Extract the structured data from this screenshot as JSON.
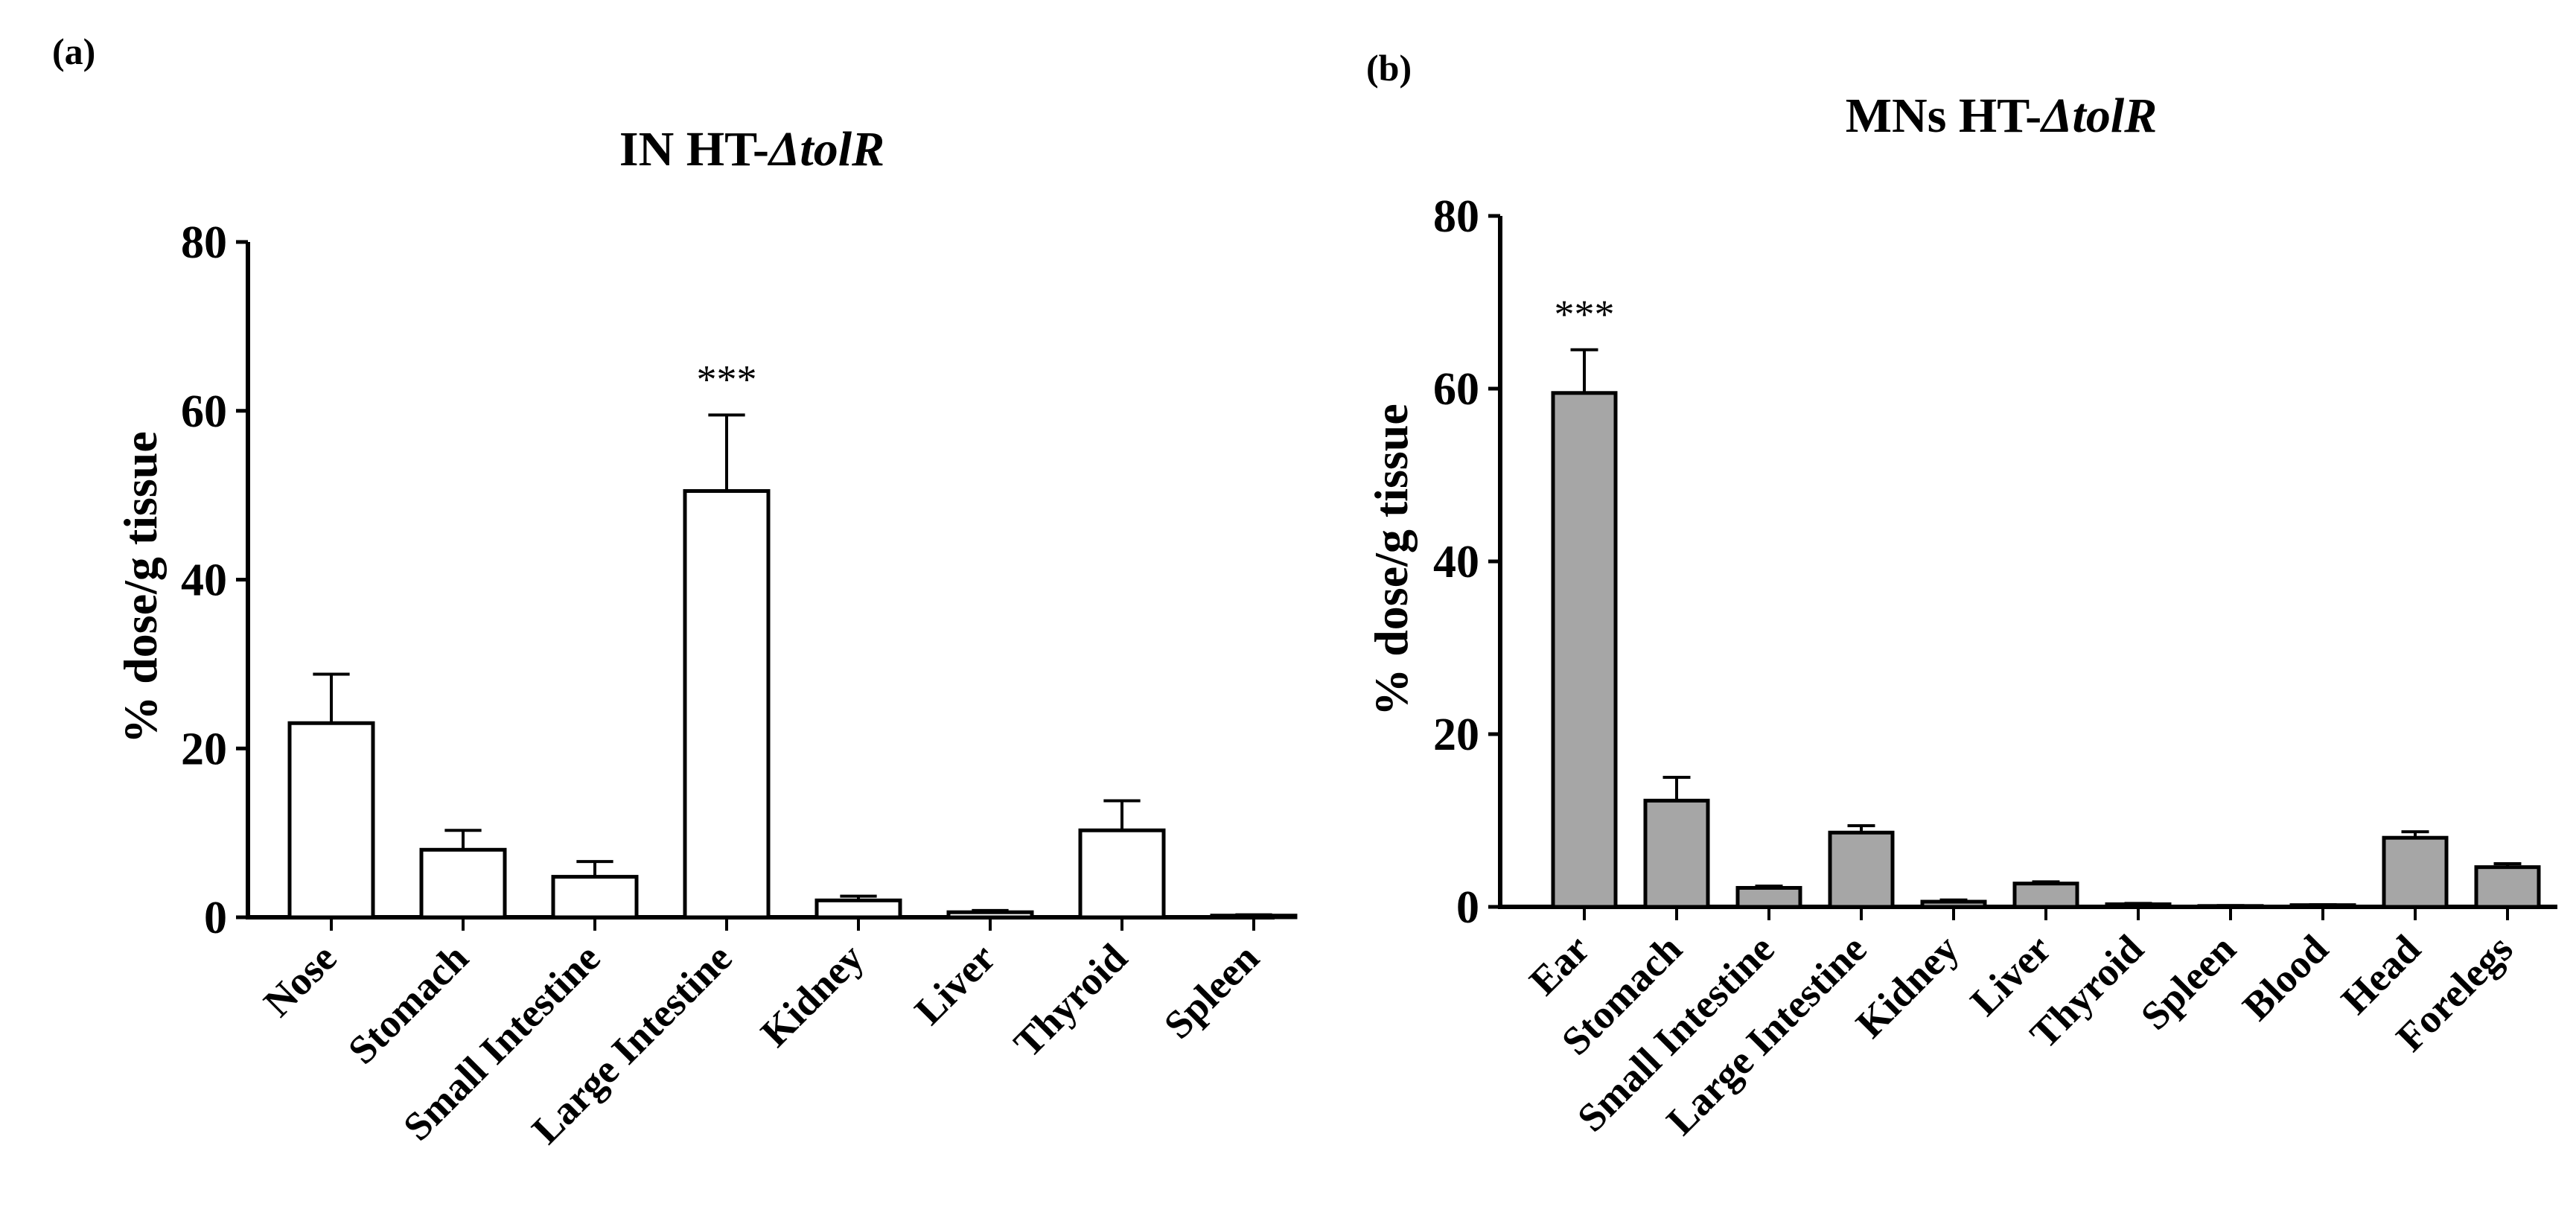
{
  "figure": {
    "bar_colors": [
      "#ffffff",
      "#a6a6a6"
    ],
    "axis_color": "#000000"
  },
  "chart_data": [
    {
      "panel": "(a)",
      "type": "bar",
      "title": "IN HT-",
      "title_italic": "ΔtolR",
      "xlabel": "",
      "ylabel": "% dose/g tissue",
      "ylim": [
        0,
        80
      ],
      "yticks": [
        0,
        20,
        40,
        60,
        80
      ],
      "categories": [
        "Nose",
        "Stomach",
        "Small Intestine",
        "Large Intestine",
        "Kidney",
        "Liver",
        "Thyroid",
        "Spleen"
      ],
      "values": [
        23,
        8,
        4.8,
        50.5,
        2.0,
        0.6,
        10.3,
        0.2
      ],
      "errors": [
        5.8,
        2.3,
        1.8,
        9.0,
        0.5,
        0.2,
        3.5,
        0.1
      ],
      "annotations": [
        {
          "category": "Large Intestine",
          "text": "***"
        }
      ]
    },
    {
      "panel": "(b)",
      "type": "bar",
      "title": "MNs HT-",
      "title_italic": "ΔtolR",
      "xlabel": "",
      "ylabel": "% dose/g tissue",
      "ylim": [
        0,
        80
      ],
      "yticks": [
        0,
        20,
        40,
        60,
        80
      ],
      "categories": [
        "Ear",
        "Stomach",
        "Small Intestine",
        "Large Intestine",
        "Kidney",
        "Liver",
        "Thyroid",
        "Spleen",
        "Blood",
        "Head",
        "Forelegs"
      ],
      "values": [
        59.5,
        12.3,
        2.2,
        8.6,
        0.6,
        2.7,
        0.3,
        0.1,
        0.2,
        8.0,
        4.6
      ],
      "errors": [
        5.0,
        2.7,
        0.2,
        0.8,
        0.2,
        0.2,
        0.1,
        0.05,
        0.05,
        0.7,
        0.4
      ],
      "annotations": [
        {
          "category": "Ear",
          "text": "***"
        }
      ]
    }
  ]
}
